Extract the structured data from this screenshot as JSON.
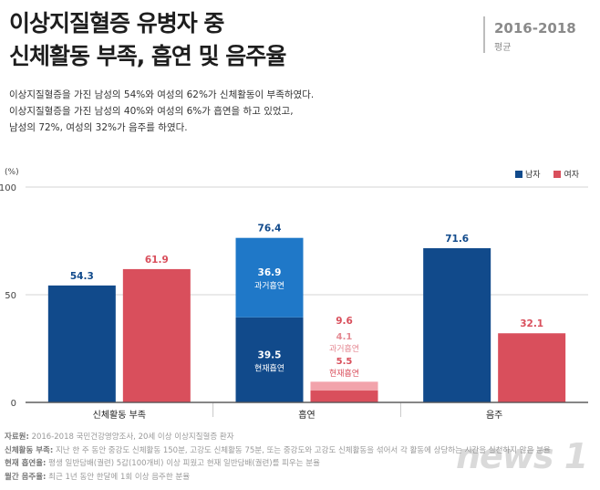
{
  "header": {
    "title_line1": "이상지질혈증 유병자 중",
    "title_line2": "신체활동 부족, 흡연 및 음주율",
    "period": "2016-2018",
    "period_sub": "평균"
  },
  "description": [
    "이상지질혈증을 가진 남성의 54%와 여성의 62%가 신체활동이 부족하였다.",
    "이상지질혈증을 가진 남성의 40%와 여성의 6%가 흡연을 하고 있었고,",
    "남성의 72%, 여성의 32%가 음주를 하였다."
  ],
  "chart_data": {
    "type": "bar",
    "unit": "(%)",
    "ylim": [
      0,
      100
    ],
    "yticks": [
      "0",
      "50",
      "100"
    ],
    "categories": [
      "신체활동 부족",
      "흡연",
      "음주"
    ],
    "series": [
      {
        "name": "남자",
        "color": "#114a8b",
        "values": [
          54.3,
          76.4,
          71.6
        ],
        "labels": [
          "54.3",
          "76.4",
          "71.6"
        ]
      },
      {
        "name": "여자",
        "color": "#d94f5c",
        "values": [
          61.9,
          9.6,
          32.1
        ],
        "labels": [
          "61.9",
          "9.6",
          "32.1"
        ]
      }
    ],
    "smoking_breakdown": {
      "male": [
        {
          "name": "현재흡연",
          "value": 39.5,
          "label": "39.5",
          "color": "#114a8b"
        },
        {
          "name": "과거흡연",
          "value": 36.9,
          "label": "36.9",
          "color": "#1f78c8"
        }
      ],
      "female": [
        {
          "name": "현재흡연",
          "value": 5.5,
          "label": "5.5",
          "color": "#d94f5c"
        },
        {
          "name": "과거흡연",
          "value": 4.1,
          "label": "4.1",
          "color": "#f2a3ab"
        }
      ]
    },
    "legend_position": "top-right",
    "grid": true
  },
  "footer": [
    {
      "label": "자료원:",
      "text": " 2016-2018 국민건강영양조사, 20세 이상 이상지질혈증 환자"
    },
    {
      "label": "신체활동 부족:",
      "text": " 지난 한 주 동안 중강도 신체활동 150분, 고강도 신체활동 75분, 또는 중강도와 고강도 신체활동을 섞어서 각 활동에 상당하는 시간을 실천하지 않은 분율"
    },
    {
      "label": "현재 흡연율:",
      "text": " 평생 일반담배(궐련) 5갑(100개비) 이상 피웠고 현재 일반담배(궐련)를 피우는 분율"
    },
    {
      "label": "월간 음주율:",
      "text": " 최근 1년 동안 한달에 1회 이상 음주한 분율"
    }
  ],
  "watermark": "news 1"
}
